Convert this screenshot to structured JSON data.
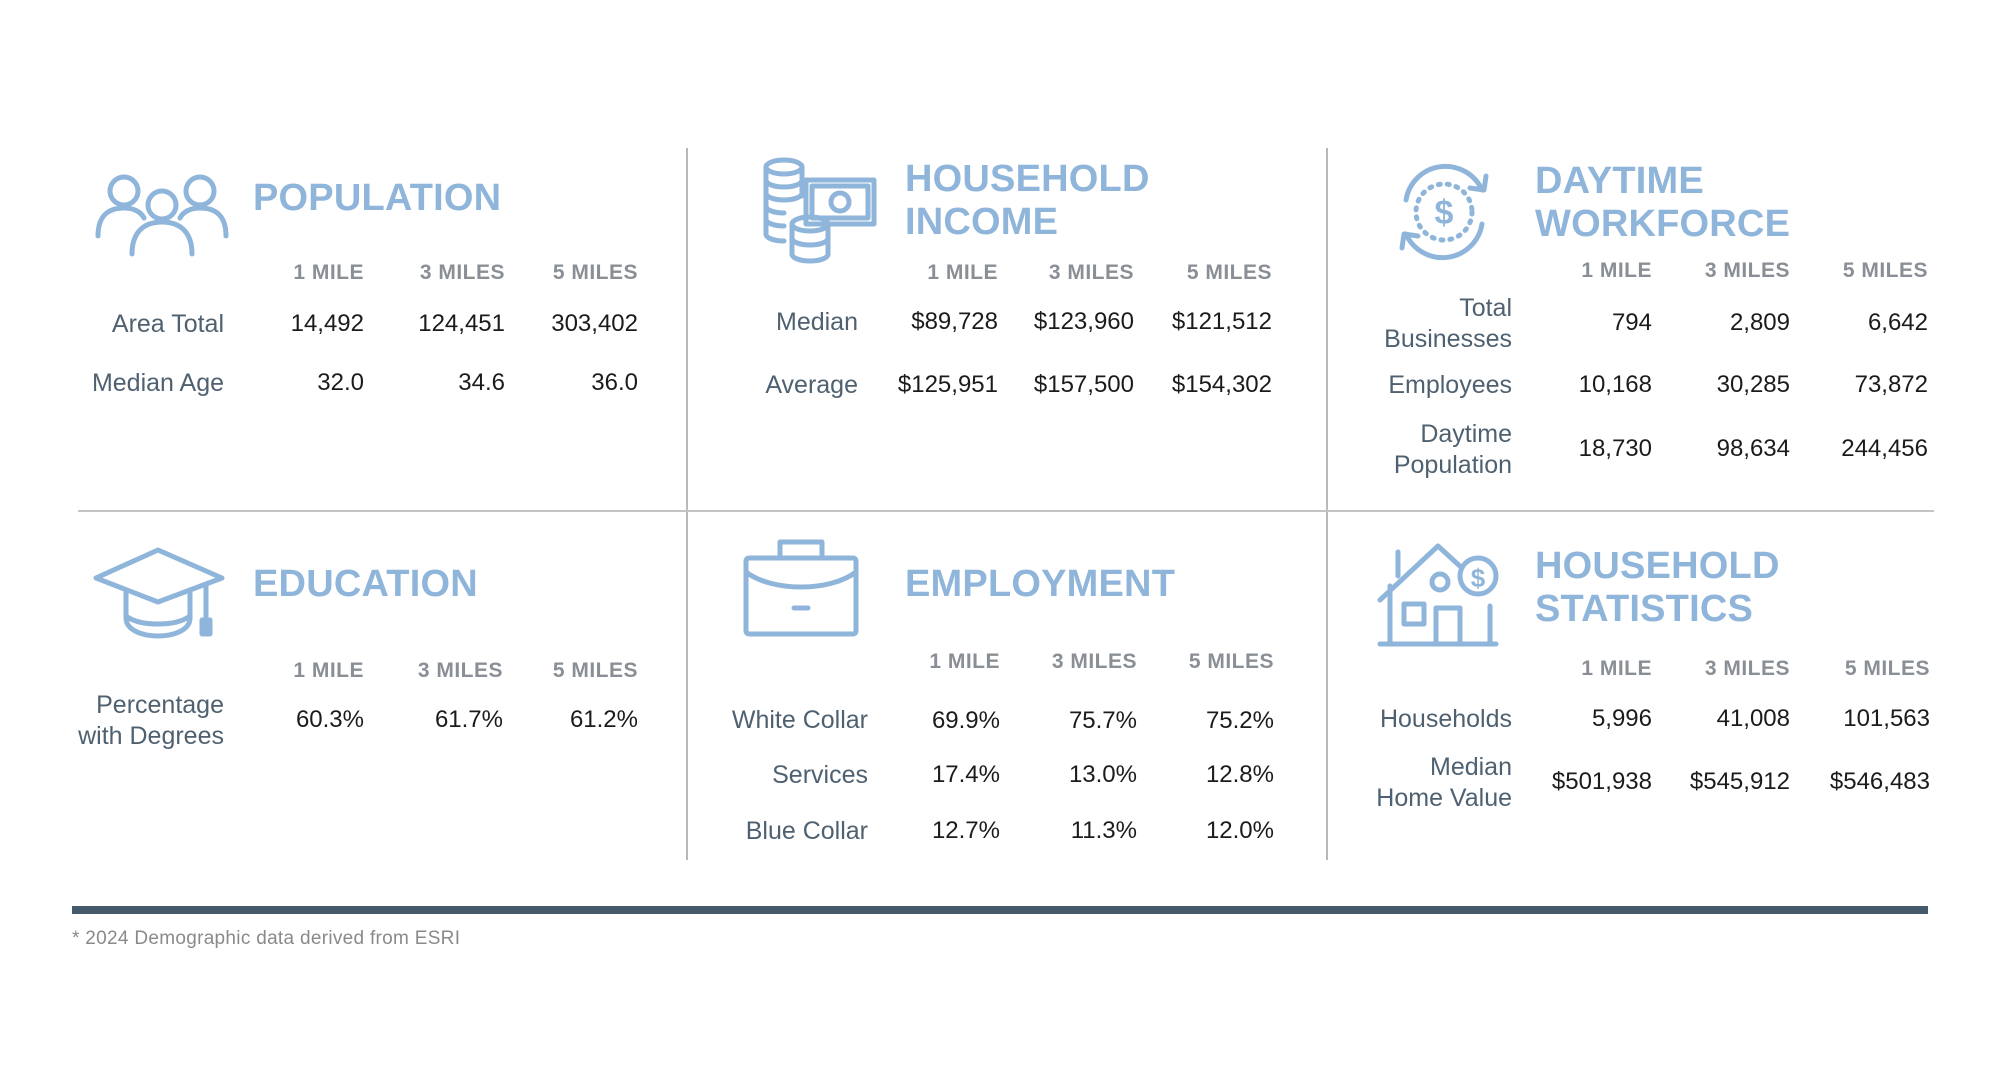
{
  "panels": {
    "population": {
      "title": "POPULATION",
      "icon": "people-group-icon",
      "columns": [
        "1 MILE",
        "3 MILES",
        "5 MILES"
      ],
      "rows": [
        {
          "label": "Area Total",
          "values": [
            "14,492",
            "124,451",
            "303,402"
          ]
        },
        {
          "label": "Median Age",
          "values": [
            "32.0",
            "34.6",
            "36.0"
          ]
        }
      ]
    },
    "household_income": {
      "title_lines": [
        "HOUSEHOLD",
        "INCOME"
      ],
      "icon": "coins-cash-icon",
      "columns": [
        "1 MILE",
        "3 MILES",
        "5 MILES"
      ],
      "rows": [
        {
          "label": "Median",
          "values": [
            "$89,728",
            "$123,960",
            "$121,512"
          ]
        },
        {
          "label": "Average",
          "values": [
            "$125,951",
            "$157,500",
            "$154,302"
          ]
        }
      ]
    },
    "daytime_workforce": {
      "title_lines": [
        "DAYTIME",
        "WORKFORCE"
      ],
      "icon": "dollar-cycle-icon",
      "columns": [
        "1 MILE",
        "3 MILES",
        "5 MILES"
      ],
      "rows": [
        {
          "label_lines": [
            "Total",
            "Businesses"
          ],
          "values": [
            "794",
            "2,809",
            "6,642"
          ]
        },
        {
          "label": "Employees",
          "values": [
            "10,168",
            "30,285",
            "73,872"
          ]
        },
        {
          "label_lines": [
            "Daytime",
            "Population"
          ],
          "values": [
            "18,730",
            "98,634",
            "244,456"
          ]
        }
      ]
    },
    "education": {
      "title": "EDUCATION",
      "icon": "graduation-cap-icon",
      "columns": [
        "1 MILE",
        "3 MILES",
        "5 MILES"
      ],
      "rows": [
        {
          "label_lines": [
            "Percentage",
            "with Degrees"
          ],
          "values": [
            "60.3%",
            "61.7%",
            "61.2%"
          ]
        }
      ]
    },
    "employment": {
      "title": "EMPLOYMENT",
      "icon": "briefcase-icon",
      "columns": [
        "1 MILE",
        "3 MILES",
        "5 MILES"
      ],
      "rows": [
        {
          "label": "White Collar",
          "values": [
            "69.9%",
            "75.7%",
            "75.2%"
          ]
        },
        {
          "label": "Services",
          "values": [
            "17.4%",
            "13.0%",
            "12.8%"
          ]
        },
        {
          "label": "Blue Collar",
          "values": [
            "12.7%",
            "11.3%",
            "12.0%"
          ]
        }
      ]
    },
    "household_statistics": {
      "title_lines": [
        "HOUSEHOLD",
        "STATISTICS"
      ],
      "icon": "house-dollar-icon",
      "columns": [
        "1 MILE",
        "3 MILES",
        "5 MILES"
      ],
      "rows": [
        {
          "label": "Households",
          "values": [
            "5,996",
            "41,008",
            "101,563"
          ]
        },
        {
          "label_lines": [
            "Median",
            "Home Value"
          ],
          "values": [
            "$501,938",
            "$545,912",
            "$546,483"
          ]
        }
      ]
    }
  },
  "footnote": "* 2024 Demographic data derived from ESRI",
  "colors": {
    "accent": "#8fb5da",
    "label": "#4f6170",
    "header": "#8a8f96",
    "bar": "#44596a",
    "divider": "#c4c4c4"
  }
}
